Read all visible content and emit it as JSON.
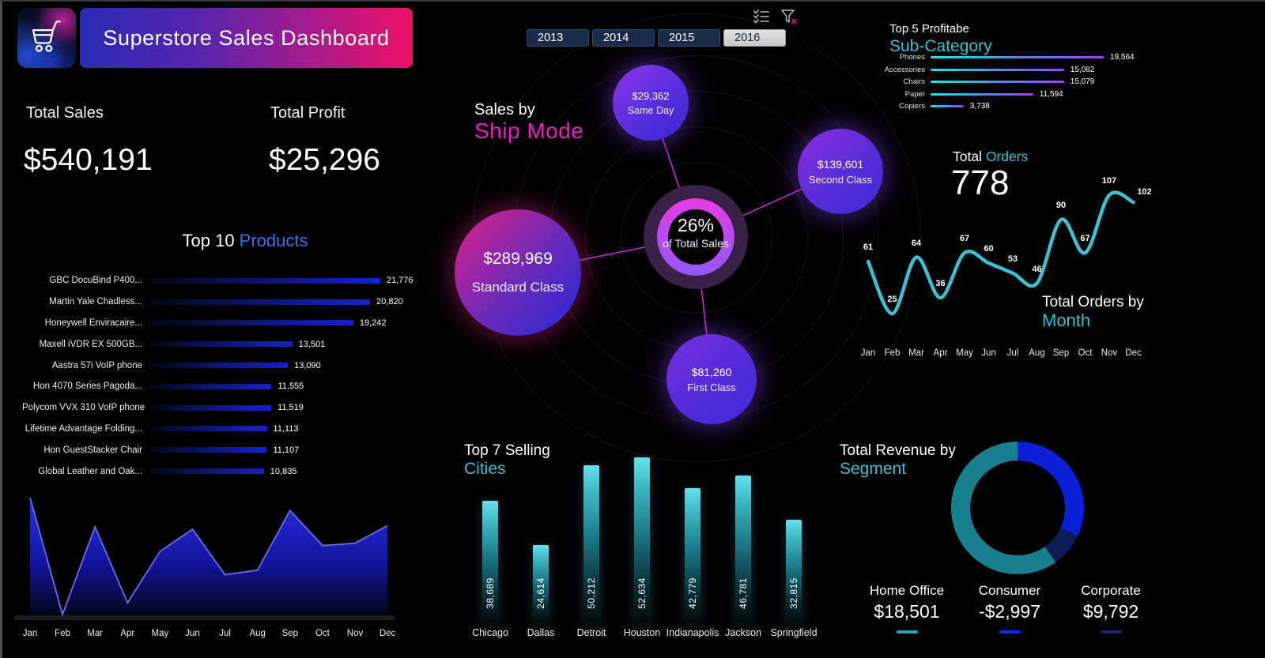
{
  "header": {
    "title": "Superstore Sales Dashboard",
    "logo_icon": "shopping-cart-icon"
  },
  "kpis": {
    "total_sales_label": "Total Sales",
    "total_sales_value": "$540,191",
    "total_profit_label": "Total Profit",
    "total_profit_value": "$25,296"
  },
  "filters": {
    "years": [
      "2013",
      "2014",
      "2015",
      "2016"
    ],
    "selected_year": "2016",
    "icons": [
      "multi-select-checklist-icon",
      "clear-filter-icon"
    ]
  },
  "sections": {
    "top10": {
      "title_prefix": "Top 10 ",
      "title_accent": "Products"
    },
    "ship_mode": {
      "title_prefix": "Sales by",
      "title_accent": "Ship Mode",
      "center_value": "26%",
      "center_label": "of Total Sales"
    },
    "subcategory": {
      "title_prefix": "Top 5 Profitabe",
      "title_accent": "Sub-Category"
    },
    "orders": {
      "title_prefix": "Total ",
      "title_accent": "Orders",
      "total_label": "778",
      "footer_prefix": "Total Orders by",
      "footer_accent": "Month"
    },
    "cities": {
      "title_prefix": "Top 7 Selling",
      "title_accent": "Cities"
    },
    "segment": {
      "title_prefix": "Total Revenue by",
      "title_accent": "Segment"
    }
  },
  "colors": {
    "background": "#000000",
    "accent_blue": "#3f6ef2",
    "accent_magenta": "#f318c2",
    "accent_teal": "#35c0d4",
    "orders_line": "#3cc0d2",
    "banner_gradient": [
      "#2b2ab5",
      "#a31c8d",
      "#ee1066"
    ]
  },
  "months": [
    "Jan",
    "Feb",
    "Mar",
    "Apr",
    "May",
    "Jun",
    "Jul",
    "Aug",
    "Sep",
    "Oct",
    "Nov",
    "Dec"
  ],
  "chart_data": [
    {
      "id": "top10_products",
      "type": "bar",
      "orientation": "horizontal",
      "title": "Top 10 Products",
      "categories": [
        "GBC DocuBind P400...",
        "Martin Yale Chadless...",
        "Honeywell Enviracaire...",
        "Maxell iVDR EX 500GB...",
        "Aastra 57i VoIP phone",
        "Hon 4070 Series Pagoda...",
        "Polycom VVX 310 VoIP phone",
        "Lifetime Advantage Folding...",
        "Hon GuestStacker Chair",
        "Global Leather and Oak..."
      ],
      "values": [
        21776,
        20820,
        19242,
        13501,
        13090,
        11555,
        11519,
        11113,
        11107,
        10835
      ],
      "value_labels": [
        "21,776",
        "20,820",
        "19,242",
        "13,501",
        "13,090",
        "11,555",
        "11,519",
        "11,113",
        "11,107",
        "10,835"
      ]
    },
    {
      "id": "sales_by_month_area",
      "type": "area",
      "title": "",
      "categories": [
        "Jan",
        "Feb",
        "Mar",
        "Apr",
        "May",
        "Jun",
        "Jul",
        "Aug",
        "Sep",
        "Oct",
        "Nov",
        "Dec"
      ],
      "values_relative_pct": [
        100,
        0,
        75,
        10,
        54,
        73,
        34,
        38,
        89,
        59,
        61,
        76
      ],
      "note_axis": "no y-axis labels shown; heights estimated relative to tallest month"
    },
    {
      "id": "sales_by_ship_mode",
      "type": "bubble",
      "title": "Sales by Ship Mode",
      "center": {
        "value": "26%",
        "label": "of Total Sales"
      },
      "items": [
        {
          "label": "Same Day",
          "value": 29362,
          "value_label": "$29,362"
        },
        {
          "label": "Second Class",
          "value": 139601,
          "value_label": "$139,601"
        },
        {
          "label": "Standard Class",
          "value": 289969,
          "value_label": "$289,969"
        },
        {
          "label": "First Class",
          "value": 81260,
          "value_label": "$81,260"
        }
      ]
    },
    {
      "id": "top5_profitable_subcategory",
      "type": "bar",
      "orientation": "horizontal",
      "title": "Top 5 Profitabe Sub-Category",
      "categories": [
        "Phones",
        "Accessories",
        "Chairs",
        "Paper",
        "Copiers"
      ],
      "values": [
        19564,
        15082,
        15079,
        11594,
        3738
      ],
      "value_labels": [
        "19,564",
        "15,082",
        "15,079",
        "11,594",
        "3,738"
      ]
    },
    {
      "id": "total_orders_by_month",
      "type": "line",
      "title": "Total Orders by Month",
      "total": 778,
      "categories": [
        "Jan",
        "Feb",
        "Mar",
        "Apr",
        "May",
        "Jun",
        "Jul",
        "Aug",
        "Sep",
        "Oct",
        "Nov",
        "Dec"
      ],
      "values": [
        61,
        25,
        64,
        36,
        67,
        60,
        53,
        46,
        90,
        67,
        107,
        102
      ]
    },
    {
      "id": "top7_selling_cities",
      "type": "bar",
      "orientation": "vertical",
      "title": "Top 7 Selling Cities",
      "categories": [
        "Chicago",
        "Dallas",
        "Detroit",
        "Houston",
        "Indianapolis",
        "Jackson",
        "Springfield"
      ],
      "values": [
        38689,
        24614,
        50212,
        52634,
        42779,
        46781,
        32815
      ],
      "value_labels": [
        "38,689",
        "24,614",
        "50,212",
        "52,634",
        "42,779",
        "46,781",
        "32,815"
      ]
    },
    {
      "id": "total_revenue_by_segment",
      "type": "donut",
      "title": "Total Revenue by Segment",
      "segments": [
        {
          "name": "Consumer",
          "value_label": "-$2,997",
          "color": "#0a1fd8",
          "legend_color": "#0c2ae6",
          "start_deg": 0,
          "end_deg": 115
        },
        {
          "name": "Corporate",
          "value_label": "$9,792",
          "color": "#0d1c55",
          "legend_color": "#1a2670",
          "start_deg": 115,
          "end_deg": 145
        },
        {
          "name": "Home Office",
          "value_label": "$18,501",
          "color": "#17808f",
          "legend_color": "#2aa6b8",
          "start_deg": 145,
          "end_deg": 360
        }
      ],
      "legend_order": [
        "Home Office",
        "Consumer",
        "Corporate"
      ]
    }
  ]
}
